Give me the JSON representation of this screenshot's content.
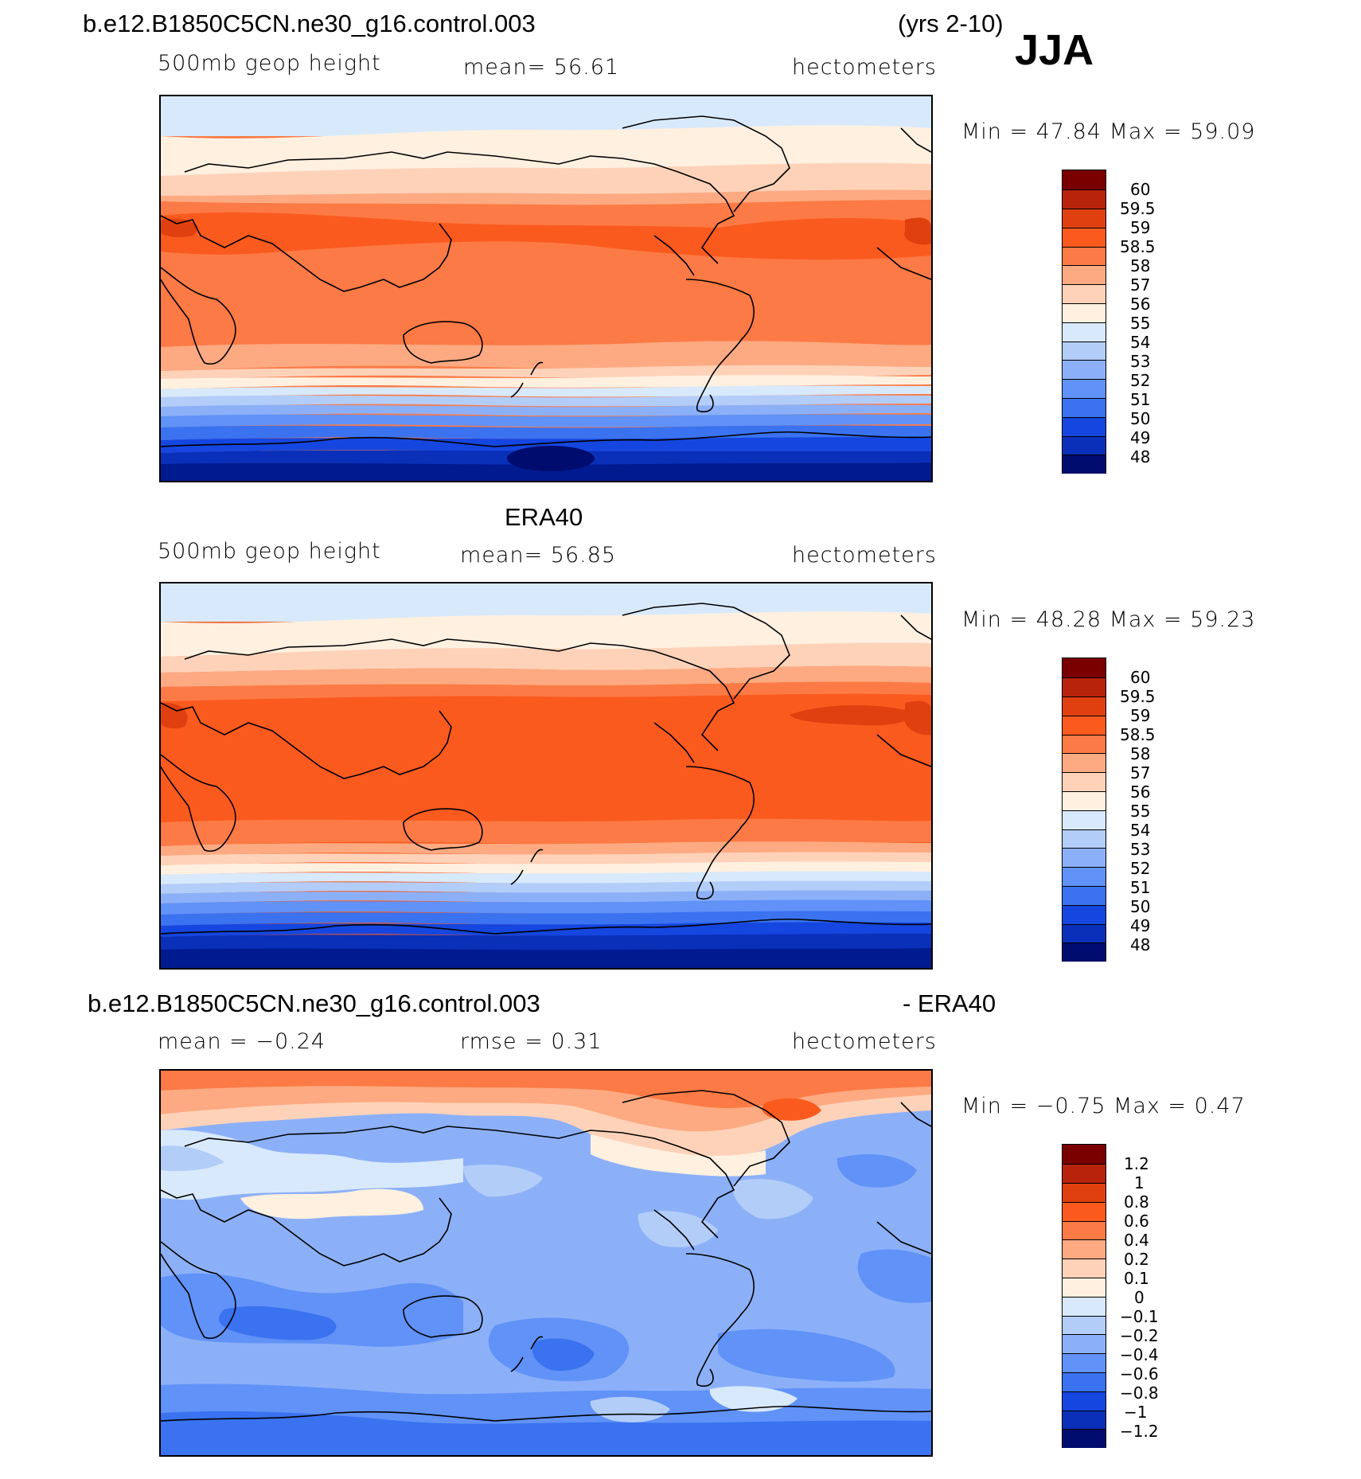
{
  "figure": {
    "case_name": "b.e12.B1850C5CN.ne30_g16.control.003",
    "years": "(yrs 2-10)",
    "season": "JJA"
  },
  "panel1": {
    "variable": "500mb geop height",
    "mean_text": "mean=   56.61",
    "units": "hectometers",
    "minmax": "Min =   47.84  Max =   59.09",
    "colorbar_labels": [
      "60",
      "59.5",
      "59",
      "58.5",
      "58",
      "57",
      "56",
      "55",
      "54",
      "53",
      "52",
      "51",
      "50",
      "49",
      "48"
    ]
  },
  "panel2": {
    "title": "ERA40",
    "variable": "500mb geop height",
    "mean_text": "mean=   56.85",
    "units": "hectometers",
    "minmax": "Min =   48.28  Max =   59.23",
    "colorbar_labels": [
      "60",
      "59.5",
      "59",
      "58.5",
      "58",
      "57",
      "56",
      "55",
      "54",
      "53",
      "52",
      "51",
      "50",
      "49",
      "48"
    ]
  },
  "panel3": {
    "title_left": "b.e12.B1850C5CN.ne30_g16.control.003",
    "title_right": "- ERA40",
    "mean_text": "mean =   −0.24",
    "rmse_text": "rmse =    0.31",
    "units": "hectometers",
    "minmax": "Min =   −0.75  Max =    0.47",
    "colorbar_labels": [
      "1.2",
      "1",
      "0.8",
      "0.6",
      "0.4",
      "0.2",
      "0.1",
      "0",
      "−0.1",
      "−0.2",
      "−0.4",
      "−0.6",
      "−0.8",
      "−1",
      "−1.2"
    ]
  },
  "palette": {
    "field": [
      "#7a0000",
      "#b8230c",
      "#e0400f",
      "#fb5a1f",
      "#fc7a45",
      "#fdaa82",
      "#fed2b9",
      "#fff0e0",
      "#d8e9fb",
      "#b3cdf9",
      "#8cb0f8",
      "#6092f7",
      "#3a72f0",
      "#1546e0",
      "#0a2fb8",
      "#001b8f",
      "#000c6e"
    ],
    "diff": [
      "#7a0000",
      "#b8230c",
      "#e0400f",
      "#fb5a1f",
      "#fc7a45",
      "#fdaa82",
      "#fed2b9",
      "#fff0e0",
      "#d8e9fb",
      "#b3cdf9",
      "#8cb0f8",
      "#6092f7",
      "#3a72f0",
      "#1546e0",
      "#0a2fb8",
      "#001b8f"
    ]
  }
}
